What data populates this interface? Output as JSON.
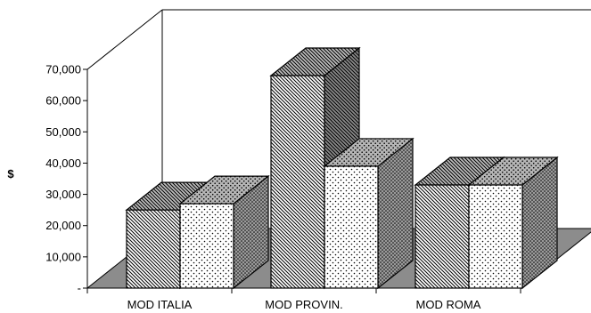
{
  "chart_data": {
    "type": "bar",
    "title": "",
    "xlabel": "",
    "ylabel": "$",
    "ylim": [
      0,
      70000
    ],
    "yticks": [
      "-",
      "10,000",
      "20,000",
      "30,000",
      "40,000",
      "50,000",
      "60,000",
      "70,000"
    ],
    "categories": [
      "MOD ITALIA",
      "MOD PROVIN.",
      "MOD ROMA"
    ],
    "series": [
      {
        "pattern": "diagonal-hatch",
        "values": [
          25000,
          68000,
          33000
        ]
      },
      {
        "pattern": "dotted",
        "values": [
          27000,
          39000,
          33000
        ]
      }
    ],
    "grid": false,
    "legend": "none",
    "three_d": true,
    "colors": {
      "floor": "#8c8c8c",
      "bar_face": "#ffffff",
      "ink": "#000000"
    }
  }
}
